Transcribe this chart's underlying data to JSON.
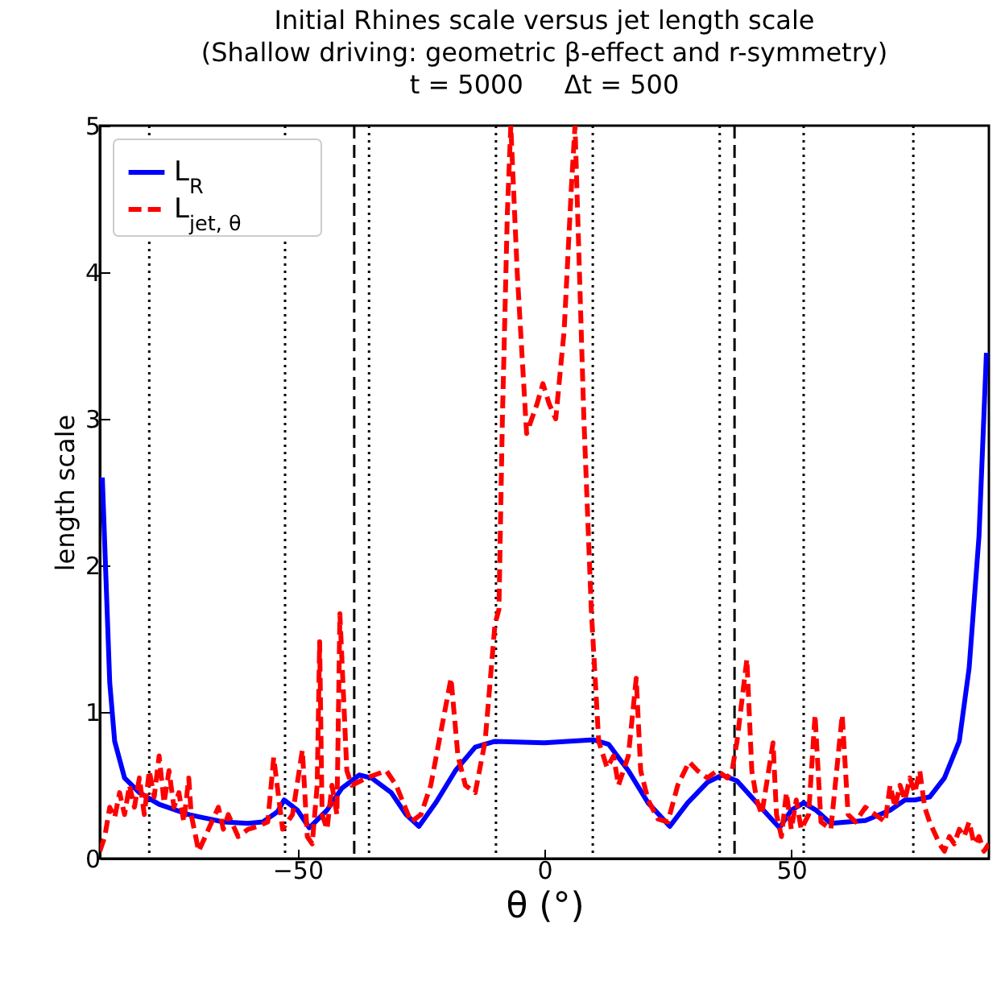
{
  "chart_data": {
    "type": "line",
    "title": "Initial Rhines scale versus jet length scale\n(Shallow driving: geometric β-effect and r-symmetry)\nt = 5000     Δt = 500",
    "xlabel": "θ (°)",
    "ylabel": "length scale",
    "xlim": [
      -90,
      90
    ],
    "ylim": [
      0,
      5
    ],
    "xticks": [
      -50,
      0,
      50
    ],
    "yticks": [
      0,
      1,
      2,
      3,
      4,
      5
    ],
    "legend": "top left",
    "grid": false,
    "series": [
      {
        "name": "L$_{R}$",
        "color": "#0000ff",
        "line_style": "solid",
        "x": [
          -89.5,
          -88,
          -87,
          -85,
          -82,
          -78,
          -72,
          -65,
          -60,
          -57,
          -54,
          -52.7,
          -50,
          -47.6,
          -44,
          -41,
          -37.5,
          -35,
          -31,
          -28,
          -25.4,
          -22,
          -18,
          -14,
          -10,
          0,
          10,
          13,
          17,
          21,
          25.4,
          29,
          33,
          36,
          39,
          43,
          47.6,
          50,
          52.5,
          55,
          58,
          65,
          70,
          73,
          75,
          78,
          81,
          84,
          86,
          88,
          89.5
        ],
        "values": [
          2.6,
          1.2,
          0.8,
          0.55,
          0.45,
          0.37,
          0.3,
          0.25,
          0.24,
          0.25,
          0.32,
          0.4,
          0.33,
          0.21,
          0.33,
          0.48,
          0.57,
          0.55,
          0.45,
          0.3,
          0.22,
          0.38,
          0.6,
          0.76,
          0.8,
          0.79,
          0.81,
          0.78,
          0.6,
          0.38,
          0.22,
          0.38,
          0.52,
          0.57,
          0.53,
          0.38,
          0.21,
          0.33,
          0.38,
          0.33,
          0.24,
          0.26,
          0.33,
          0.4,
          0.4,
          0.42,
          0.55,
          0.8,
          1.3,
          2.2,
          3.45
        ]
      },
      {
        "name": "L$_{jet, θ}$",
        "color": "#ff0000",
        "line_style": "dashed",
        "x": [
          -90,
          -89,
          -88,
          -87,
          -86,
          -85,
          -84,
          -83,
          -82,
          -81,
          -80,
          -79,
          -78,
          -77,
          -76,
          -75,
          -74,
          -73,
          -72,
          -71.5,
          -70,
          -68,
          -66,
          -65,
          -64,
          -62,
          -60,
          -58,
          -56,
          -54.8,
          -53,
          -51,
          -49,
          -48,
          -47,
          -46,
          -45.5,
          -45,
          -44,
          -43,
          -42,
          -41.4,
          -40,
          -39,
          -36,
          -32,
          -30,
          -27,
          -25,
          -23,
          -18.9,
          -17.5,
          -16,
          -14,
          -12,
          -10,
          -9.2,
          -8.5,
          -7.5,
          -6.8,
          -5.5,
          -3.6,
          -1.5,
          -0.3,
          1,
          2.3,
          4,
          5.5,
          6.2,
          8,
          9.5,
          11,
          12.7,
          14,
          15,
          17,
          18.6,
          19.5,
          21,
          23,
          25,
          27,
          29.3,
          31,
          33,
          35,
          37,
          38,
          39,
          41,
          42,
          43,
          44,
          46.3,
          47,
          48,
          49,
          50,
          51,
          52,
          53.5,
          54.8,
          56,
          58,
          60.3,
          61.5,
          63,
          65,
          67,
          69,
          70,
          71,
          72,
          73,
          74,
          75,
          76,
          77,
          78,
          80,
          81,
          82,
          83,
          84,
          85,
          86,
          87,
          88,
          89,
          90
        ],
        "values": [
          0.05,
          0.15,
          0.35,
          0.28,
          0.45,
          0.3,
          0.5,
          0.35,
          0.55,
          0.3,
          0.6,
          0.42,
          0.7,
          0.38,
          0.6,
          0.35,
          0.45,
          0.25,
          0.55,
          0.3,
          0.05,
          0.2,
          0.35,
          0.2,
          0.3,
          0.15,
          0.2,
          0.22,
          0.25,
          0.69,
          0.2,
          0.3,
          0.74,
          0.15,
          0.1,
          0.5,
          1.48,
          0.3,
          0.2,
          0.5,
          0.3,
          1.67,
          0.6,
          0.5,
          0.55,
          0.6,
          0.5,
          0.25,
          0.3,
          0.5,
          1.23,
          0.7,
          0.5,
          0.45,
          0.8,
          1.6,
          1.7,
          3.0,
          4.4,
          5.0,
          4.0,
          2.9,
          3.1,
          3.24,
          3.1,
          3.0,
          3.6,
          4.6,
          5.0,
          3.0,
          1.7,
          0.8,
          0.62,
          0.7,
          0.5,
          0.7,
          1.23,
          0.6,
          0.4,
          0.27,
          0.25,
          0.5,
          0.66,
          0.6,
          0.55,
          0.6,
          0.55,
          0.6,
          0.8,
          1.36,
          0.6,
          0.4,
          0.3,
          0.79,
          0.3,
          0.15,
          0.45,
          0.2,
          0.4,
          0.2,
          0.3,
          0.98,
          0.25,
          0.2,
          0.98,
          0.3,
          0.25,
          0.35,
          0.3,
          0.25,
          0.5,
          0.35,
          0.5,
          0.4,
          0.55,
          0.45,
          0.6,
          0.35,
          0.25,
          0.1,
          0.05,
          0.15,
          0.1,
          0.2,
          0.15,
          0.25,
          0.1,
          0.15,
          0.05,
          0.1
        ]
      }
    ],
    "ref_lines": [
      {
        "axis": "x",
        "value": -80,
        "color": "#000000",
        "line_style": "dotted"
      },
      {
        "axis": "x",
        "value": -52.5,
        "color": "#000000",
        "line_style": "dotted"
      },
      {
        "axis": "x",
        "value": -38.5,
        "color": "#000000",
        "line_style": "dashed"
      },
      {
        "axis": "x",
        "value": -35.5,
        "color": "#000000",
        "line_style": "dotted"
      },
      {
        "axis": "x",
        "value": -9.8,
        "color": "#000000",
        "line_style": "dotted"
      },
      {
        "axis": "x",
        "value": 9.8,
        "color": "#000000",
        "line_style": "dotted"
      },
      {
        "axis": "x",
        "value": 35.5,
        "color": "#000000",
        "line_style": "dotted"
      },
      {
        "axis": "x",
        "value": 38.5,
        "color": "#000000",
        "line_style": "dashed"
      },
      {
        "axis": "x",
        "value": 52.5,
        "color": "#000000",
        "line_style": "dotted"
      },
      {
        "axis": "x",
        "value": 74.7,
        "color": "#000000",
        "line_style": "dotted"
      }
    ]
  }
}
